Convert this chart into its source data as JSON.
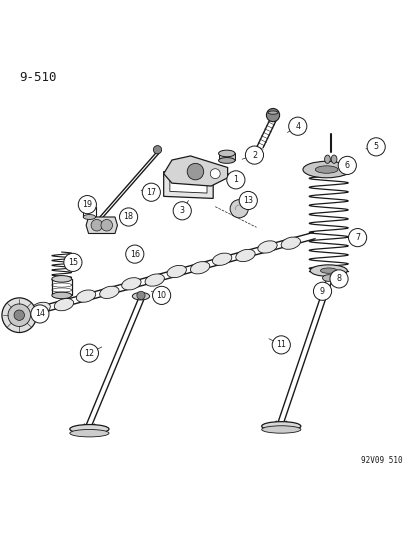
{
  "title": "9-510",
  "watermark": "92V09 510",
  "bg_color": "#ffffff",
  "line_color": "#1a1a1a",
  "figsize": [
    4.14,
    5.33
  ],
  "dpi": 100,
  "callouts": [
    [
      1,
      0.57,
      0.71,
      0.545,
      0.73
    ],
    [
      2,
      0.615,
      0.77,
      0.585,
      0.76
    ],
    [
      3,
      0.44,
      0.635,
      0.455,
      0.66
    ],
    [
      4,
      0.72,
      0.84,
      0.695,
      0.825
    ],
    [
      5,
      0.91,
      0.79,
      0.885,
      0.785
    ],
    [
      6,
      0.84,
      0.745,
      0.84,
      0.755
    ],
    [
      7,
      0.865,
      0.57,
      0.845,
      0.58
    ],
    [
      8,
      0.82,
      0.47,
      0.8,
      0.485
    ],
    [
      9,
      0.78,
      0.44,
      0.775,
      0.458
    ],
    [
      10,
      0.39,
      0.43,
      0.365,
      0.44
    ],
    [
      11,
      0.68,
      0.31,
      0.65,
      0.325
    ],
    [
      12,
      0.215,
      0.29,
      0.245,
      0.305
    ],
    [
      13,
      0.6,
      0.66,
      0.59,
      0.65
    ],
    [
      14,
      0.095,
      0.385,
      0.105,
      0.398
    ],
    [
      15,
      0.175,
      0.51,
      0.19,
      0.52
    ],
    [
      16,
      0.325,
      0.53,
      0.34,
      0.545
    ],
    [
      17,
      0.365,
      0.68,
      0.34,
      0.685
    ],
    [
      18,
      0.31,
      0.62,
      0.288,
      0.625
    ],
    [
      19,
      0.21,
      0.65,
      0.218,
      0.638
    ]
  ]
}
